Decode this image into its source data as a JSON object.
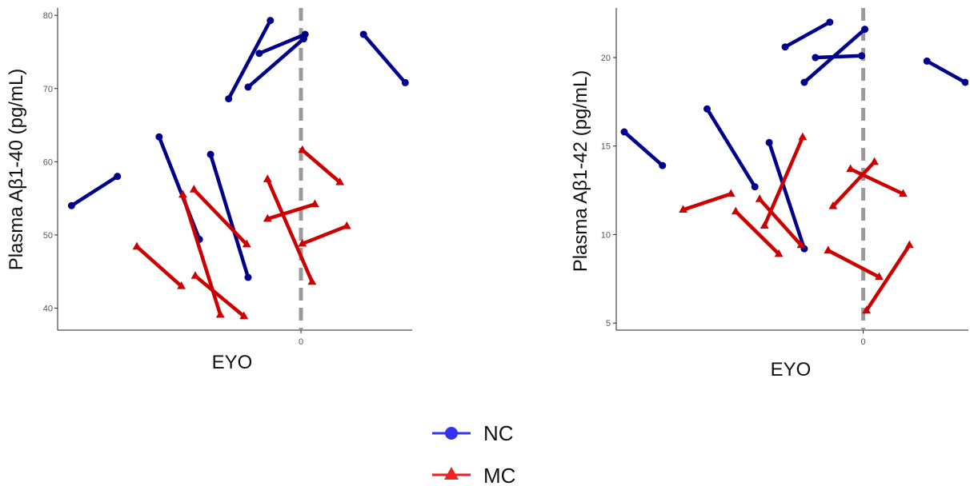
{
  "chart_data": [
    {
      "type": "line",
      "xlabel": "EYO",
      "ylabel": "Plasma Aβ1-40 (pg/mL)",
      "x_range": [
        -17.5,
        8
      ],
      "ylim": [
        37,
        81
      ],
      "x_ticks": [
        0
      ],
      "x_tick_labels": [
        "0"
      ],
      "y_ticks": [
        40,
        50,
        60,
        70,
        80
      ],
      "y_tick_labels": [
        "40",
        "50",
        "60",
        "70",
        "80"
      ],
      "reference_line_x": 0,
      "grid": false,
      "series": [
        {
          "name": "NC",
          "marker": "circle",
          "color": "#00008B",
          "segments": [
            [
              [
                -16.5,
                54.0
              ],
              [
                -13.2,
                58.0
              ]
            ],
            [
              [
                -10.2,
                63.4
              ],
              [
                -7.3,
                49.4
              ]
            ],
            [
              [
                -6.5,
                61.0
              ],
              [
                -3.8,
                44.2
              ]
            ],
            [
              [
                -5.2,
                68.6
              ],
              [
                -2.2,
                79.3
              ]
            ],
            [
              [
                -3.0,
                74.8
              ],
              [
                0.3,
                77.4
              ]
            ],
            [
              [
                -3.8,
                70.2
              ],
              [
                0.2,
                76.8
              ]
            ],
            [
              [
                4.5,
                77.4
              ],
              [
                7.5,
                70.8
              ]
            ]
          ]
        },
        {
          "name": "MC",
          "marker": "triangle",
          "color": "#CC0000",
          "segments": [
            [
              [
                -11.8,
                48.4
              ],
              [
                -8.6,
                43.0
              ]
            ],
            [
              [
                -8.5,
                55.5
              ],
              [
                -5.8,
                39.1
              ]
            ],
            [
              [
                -7.7,
                56.2
              ],
              [
                -3.9,
                48.7
              ]
            ],
            [
              [
                -7.6,
                44.4
              ],
              [
                -4.1,
                38.9
              ]
            ],
            [
              [
                -2.4,
                57.6
              ],
              [
                0.8,
                43.6
              ]
            ],
            [
              [
                -2.4,
                52.2
              ],
              [
                1.0,
                54.2
              ]
            ],
            [
              [
                0.1,
                61.6
              ],
              [
                2.8,
                57.2
              ]
            ],
            [
              [
                0.1,
                48.8
              ],
              [
                3.3,
                51.2
              ]
            ]
          ]
        }
      ]
    },
    {
      "type": "line",
      "xlabel": "EYO",
      "ylabel": "Plasma Aβ1-42 (pg/mL)",
      "x_range": [
        -15.5,
        6.6
      ],
      "ylim": [
        4.6,
        22.8
      ],
      "x_ticks": [
        0
      ],
      "x_tick_labels": [
        "0"
      ],
      "y_ticks": [
        5,
        10,
        15,
        20
      ],
      "y_tick_labels": [
        "5",
        "10",
        "15",
        "20"
      ],
      "reference_line_x": 0,
      "grid": false,
      "series": [
        {
          "name": "NC",
          "marker": "circle",
          "color": "#00008B",
          "segments": [
            [
              [
                -15.0,
                15.8
              ],
              [
                -12.6,
                13.9
              ]
            ],
            [
              [
                -9.8,
                17.1
              ],
              [
                -6.8,
                12.7
              ]
            ],
            [
              [
                -5.9,
                15.2
              ],
              [
                -3.7,
                9.2
              ]
            ],
            [
              [
                -4.9,
                20.6
              ],
              [
                -2.1,
                22.0
              ]
            ],
            [
              [
                -3.7,
                18.6
              ],
              [
                0.1,
                21.6
              ]
            ],
            [
              [
                -3.0,
                20.0
              ],
              [
                -0.1,
                20.1
              ]
            ],
            [
              [
                4.0,
                19.8
              ],
              [
                6.4,
                18.6
              ]
            ]
          ]
        },
        {
          "name": "MC",
          "marker": "triangle",
          "color": "#CC0000",
          "segments": [
            [
              [
                -11.3,
                11.4
              ],
              [
                -8.3,
                12.3
              ]
            ],
            [
              [
                -8.0,
                11.3
              ],
              [
                -5.3,
                8.9
              ]
            ],
            [
              [
                -6.2,
                10.5
              ],
              [
                -3.8,
                15.5
              ]
            ],
            [
              [
                -6.5,
                12.0
              ],
              [
                -3.9,
                9.4
              ]
            ],
            [
              [
                -2.2,
                9.1
              ],
              [
                1.0,
                7.6
              ]
            ],
            [
              [
                0.2,
                5.7
              ],
              [
                2.9,
                9.4
              ]
            ],
            [
              [
                -0.8,
                13.7
              ],
              [
                2.5,
                12.3
              ]
            ],
            [
              [
                -1.9,
                11.6
              ],
              [
                0.7,
                14.1
              ]
            ]
          ]
        }
      ]
    }
  ],
  "legend": {
    "placement": "bottom-center",
    "items": [
      {
        "label": "NC",
        "color": "#3333EE",
        "marker": "circle"
      },
      {
        "label": "MC",
        "color": "#EE2222",
        "marker": "triangle"
      }
    ]
  }
}
